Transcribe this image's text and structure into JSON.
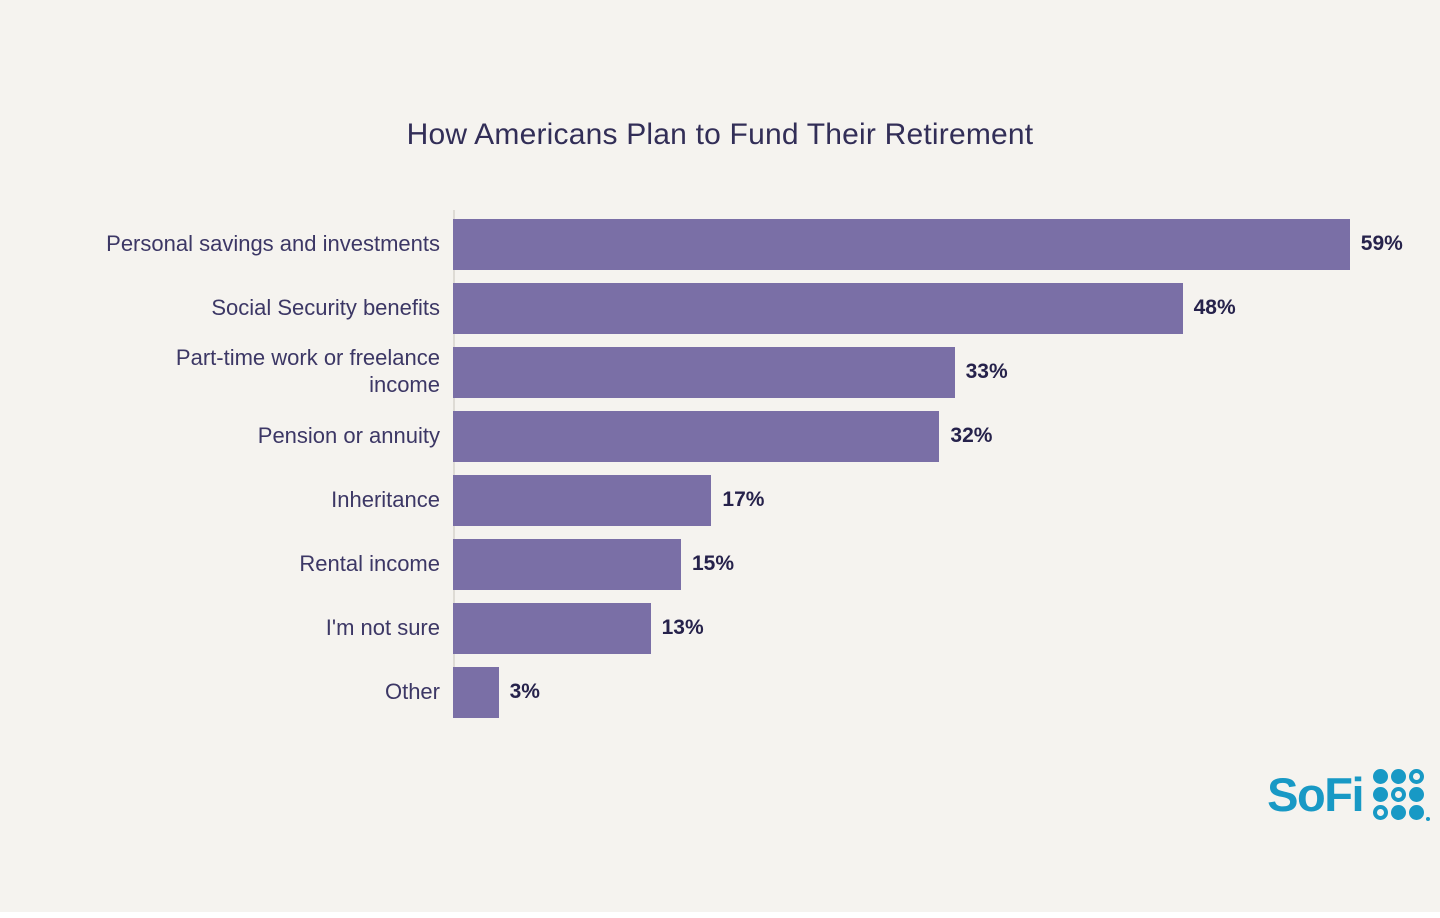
{
  "page": {
    "background_color": "#f5f3ef"
  },
  "chart_data": {
    "type": "bar",
    "orientation": "horizontal",
    "title": "How Americans Plan to Fund Their Retirement",
    "categories": [
      "Personal savings and investments",
      "Social Security benefits",
      "Part-time work or freelance\nincome",
      "Pension or annuity",
      "Inheritance",
      "Rental income",
      "I'm not sure",
      "Other"
    ],
    "values": [
      59,
      48,
      33,
      32,
      17,
      15,
      13,
      3
    ],
    "value_labels": [
      "59%",
      "48%",
      "33%",
      "32%",
      "17%",
      "15%",
      "13%",
      "3%"
    ],
    "xlabel": "",
    "ylabel": "",
    "xlim": [
      0,
      65
    ],
    "grid": false,
    "legend": false,
    "bar_color": "#7a6fa6",
    "title_color": "#322e57",
    "category_label_color": "#3c3765",
    "value_label_color": "#26224b",
    "axis_line_color": "#dedbd5"
  },
  "branding": {
    "logo_text": "SoFi",
    "logo_color": "#1899c5",
    "logo_dot_pattern": [
      [
        "filled",
        "filled",
        "outline"
      ],
      [
        "filled",
        "outline",
        "filled"
      ],
      [
        "outline",
        "filled",
        "filled"
      ]
    ]
  }
}
